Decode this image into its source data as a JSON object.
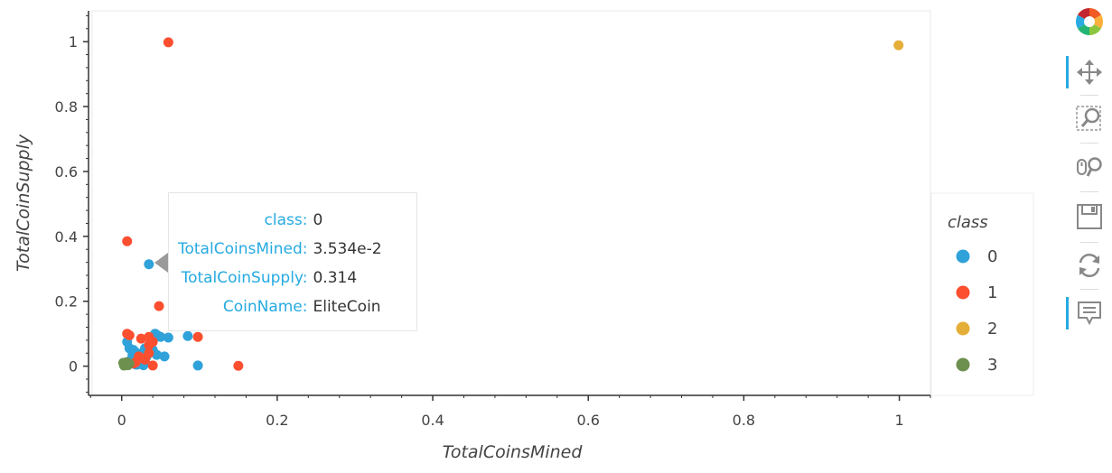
{
  "chart_data": {
    "type": "scatter",
    "xlabel": "TotalCoinsMined",
    "ylabel": "TotalCoinSupply",
    "xlim": [
      -0.038,
      1.04
    ],
    "ylim": [
      -0.09,
      1.095
    ],
    "x_ticks": [
      {
        "v": 0,
        "label": "0"
      },
      {
        "v": 0.2,
        "label": "0.2"
      },
      {
        "v": 0.4,
        "label": "0.4"
      },
      {
        "v": 0.6,
        "label": "0.6"
      },
      {
        "v": 0.8,
        "label": "0.8"
      },
      {
        "v": 1,
        "label": "1"
      }
    ],
    "y_ticks": [
      {
        "v": 0,
        "label": "0"
      },
      {
        "v": 0.2,
        "label": "0.2"
      },
      {
        "v": 0.4,
        "label": "0.4"
      },
      {
        "v": 0.6,
        "label": "0.6"
      },
      {
        "v": 0.8,
        "label": "0.8"
      },
      {
        "v": 1,
        "label": "1"
      }
    ],
    "legend": {
      "title": "class",
      "placement": "right"
    },
    "series": [
      {
        "name": "0",
        "color": "#30a2da",
        "points": [
          [
            0.035,
            0.314
          ],
          [
            0.007,
            0.075
          ],
          [
            0.01,
            0.055
          ],
          [
            0.015,
            0.05
          ],
          [
            0.02,
            0.04
          ],
          [
            0.025,
            0.035
          ],
          [
            0.03,
            0.055
          ],
          [
            0.035,
            0.06
          ],
          [
            0.04,
            0.05
          ],
          [
            0.043,
            0.1
          ],
          [
            0.046,
            0.095
          ],
          [
            0.05,
            0.09
          ],
          [
            0.06,
            0.088
          ],
          [
            0.085,
            0.093
          ],
          [
            0.055,
            0.03
          ],
          [
            0.045,
            0.035
          ],
          [
            0.02,
            0.005
          ],
          [
            0.012,
            0.02
          ],
          [
            0.018,
            0.005
          ],
          [
            0.028,
            0.003
          ],
          [
            0.025,
            0.025
          ],
          [
            0.032,
            0.03
          ],
          [
            0.038,
            0.045
          ],
          [
            0.014,
            0.035
          ],
          [
            0.098,
            0.002
          ]
        ]
      },
      {
        "name": "1",
        "color": "#fc4f30",
        "points": [
          [
            0.06,
            0.998
          ],
          [
            0.007,
            0.385
          ],
          [
            0.048,
            0.185
          ],
          [
            0.007,
            0.1
          ],
          [
            0.01,
            0.095
          ],
          [
            0.025,
            0.085
          ],
          [
            0.035,
            0.09
          ],
          [
            0.035,
            0.065
          ],
          [
            0.04,
            0.075
          ],
          [
            0.098,
            0.09
          ],
          [
            0.15,
            0.001
          ],
          [
            0.04,
            0.002
          ],
          [
            0.03,
            0.02
          ],
          [
            0.025,
            0.025
          ],
          [
            0.018,
            0.012
          ],
          [
            0.015,
            0.008
          ],
          [
            0.022,
            0.03
          ],
          [
            0.035,
            0.04
          ]
        ]
      },
      {
        "name": "2",
        "color": "#e5ae38",
        "points": [
          [
            0.999,
            0.989
          ]
        ]
      },
      {
        "name": "3",
        "color": "#6d904f",
        "points": [
          [
            0.002,
            0.01
          ],
          [
            0.005,
            0.005
          ],
          [
            0.008,
            0.003
          ],
          [
            0.006,
            0.012
          ],
          [
            0.01,
            0.008
          ],
          [
            0.003,
            0.002
          ]
        ]
      }
    ]
  },
  "tooltip": {
    "rows": [
      {
        "key": "class:",
        "value": "0"
      },
      {
        "key": "TotalCoinsMined:",
        "value": "3.534e-2"
      },
      {
        "key": "TotalCoinSupply:",
        "value": "0.314"
      },
      {
        "key": "CoinName:",
        "value": "EliteCoin"
      }
    ]
  },
  "toolbar": {
    "tools": [
      "bokeh-logo-icon",
      "pan-icon",
      "box-zoom-icon",
      "wheel-zoom-icon",
      "save-icon",
      "reset-icon",
      "hover-icon"
    ],
    "accent": "#26aae1"
  }
}
